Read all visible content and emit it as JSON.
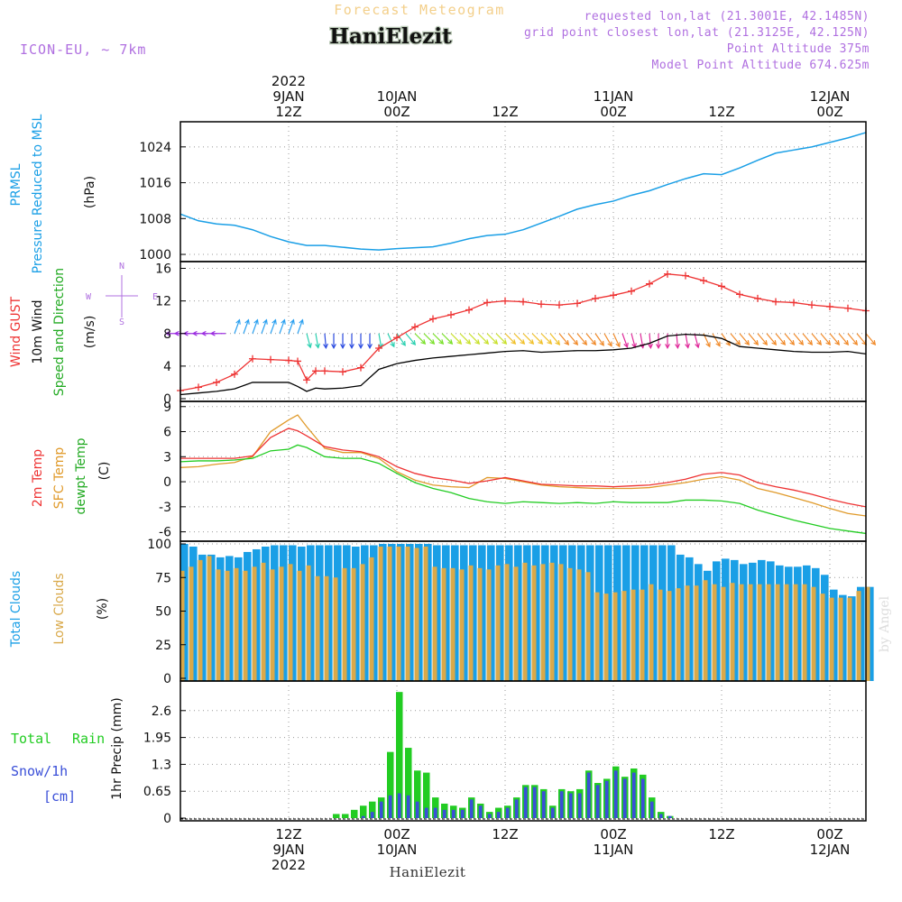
{
  "header": {
    "subtitle": "Forecast Meteogram",
    "station": "HaniElezit",
    "model": "ICON-EU, ~ 7km",
    "requested": "requested lon,lat (21.3001E, 42.1485N)",
    "closest": "grid point closest lon,lat (21.3125E, 42.125N)",
    "point_altitude": "Point Altitude 375m",
    "model_altitude": "Model Point Altitude 674.625m",
    "footer": "HaniElezit",
    "credit": "by Angel"
  },
  "time_axis": {
    "top_labels": [
      {
        "h": 12,
        "lines": [
          "2022",
          "9JAN",
          "12Z"
        ]
      },
      {
        "h": 24,
        "lines": [
          "10JAN",
          "00Z"
        ]
      },
      {
        "h": 36,
        "lines": [
          "12Z"
        ]
      },
      {
        "h": 48,
        "lines": [
          "11JAN",
          "00Z"
        ]
      },
      {
        "h": 60,
        "lines": [
          "12Z"
        ]
      },
      {
        "h": 72,
        "lines": [
          "12JAN",
          "00Z"
        ]
      }
    ],
    "bottom_labels": [
      {
        "h": 12,
        "lines": [
          "12Z",
          "9JAN",
          "2022"
        ]
      },
      {
        "h": 24,
        "lines": [
          "00Z",
          "10JAN"
        ]
      },
      {
        "h": 36,
        "lines": [
          "12Z"
        ]
      },
      {
        "h": 48,
        "lines": [
          "00Z",
          "11JAN"
        ]
      },
      {
        "h": 60,
        "lines": [
          "12Z"
        ]
      },
      {
        "h": 72,
        "lines": [
          "00Z",
          "12JAN"
        ]
      }
    ]
  },
  "colors": {
    "pressure": "#1a9fe6",
    "gust": "#ee3333",
    "wind": "#000000",
    "temp": "#ee3333",
    "sfc": "#e09a2a",
    "dew": "#22cc22",
    "total_cloud": "#1a9fe6",
    "low_cloud": "#d9a94a",
    "rain": "#22cc22",
    "snow": "#3a4fd8",
    "label_purple": "#b070e0"
  },
  "labels": {
    "pressure": [
      "PRMSL",
      "Pressure Reduced to MSL",
      "(hPa)"
    ],
    "wind": [
      "Wind GUST",
      "10m Wind",
      "Speed and Direction",
      "(m/s)"
    ],
    "compass": {
      "n": "N",
      "s": "S",
      "e": "E",
      "w": "W"
    },
    "temp": [
      "2m Temp",
      "SFC Temp",
      "dewpt Temp",
      "(C)"
    ],
    "clouds": [
      "Total Clouds",
      "Low Clouds",
      "(%)"
    ],
    "precip": [
      "Total",
      "Rain",
      "Snow/1h",
      "[cm]",
      "1hr Precip (mm)"
    ]
  },
  "chart_data": [
    {
      "type": "line",
      "panel": "pressure",
      "unit": "hPa",
      "ylim": [
        999,
        1029
      ],
      "yticks": [
        1000,
        1008,
        1016,
        1024
      ],
      "x": [
        0,
        2,
        4,
        6,
        8,
        10,
        12,
        14,
        16,
        18,
        20,
        22,
        24,
        26,
        28,
        30,
        32,
        34,
        36,
        38,
        40,
        42,
        44,
        46,
        48,
        50,
        52,
        54,
        56,
        58,
        60,
        62,
        64,
        66,
        68,
        70,
        72,
        74,
        76
      ],
      "series": [
        {
          "name": "PRMSL",
          "values": [
            1009,
            1007.5,
            1006.8,
            1006.5,
            1005.5,
            1004,
            1002.8,
            1002,
            1002,
            1001.6,
            1001.2,
            1001,
            1001.3,
            1001.5,
            1001.7,
            1002.5,
            1003.5,
            1004.2,
            1004.5,
            1005.5,
            1007,
            1008.5,
            1010.1,
            1011.1,
            1011.9,
            1013.2,
            1014.2,
            1015.6,
            1016.9,
            1018,
            1017.8,
            1019.3,
            1021,
            1022.6,
            1023.3,
            1024,
            1025,
            1026,
            1027.2
          ]
        }
      ]
    },
    {
      "type": "line",
      "panel": "wind",
      "unit": "m/s",
      "ylim": [
        0,
        16.5
      ],
      "yticks": [
        0,
        4,
        8,
        12,
        16
      ],
      "x": [
        0,
        2,
        4,
        6,
        8,
        10,
        12,
        13,
        14,
        15,
        16,
        18,
        20,
        22,
        24,
        26,
        28,
        30,
        32,
        34,
        36,
        38,
        40,
        42,
        44,
        46,
        48,
        50,
        52,
        54,
        56,
        58,
        60,
        62,
        64,
        66,
        68,
        70,
        72,
        74,
        76
      ],
      "series": [
        {
          "name": "Wind GUST",
          "values": [
            1,
            1.4,
            2,
            3,
            4.9,
            4.8,
            4.7,
            4.6,
            2.3,
            3.4,
            3.4,
            3.3,
            3.8,
            6.2,
            7.5,
            8.8,
            9.8,
            10.3,
            10.9,
            11.8,
            12,
            11.9,
            11.6,
            11.5,
            11.7,
            12.3,
            12.7,
            13.2,
            14.1,
            15.3,
            15.1,
            14.5,
            13.8,
            12.8,
            12.3,
            11.9,
            11.8,
            11.5,
            11.3,
            11.1,
            10.8
          ]
        },
        {
          "name": "10m Wind",
          "values": [
            0.5,
            0.7,
            0.9,
            1.2,
            2,
            2,
            2,
            1.5,
            0.9,
            1.3,
            1.2,
            1.3,
            1.6,
            3.6,
            4.3,
            4.7,
            5,
            5.2,
            5.4,
            5.6,
            5.8,
            5.9,
            5.7,
            5.8,
            5.9,
            5.9,
            6,
            6.2,
            6.8,
            7.7,
            7.9,
            7.8,
            7.4,
            6.4,
            6.2,
            6,
            5.8,
            5.7,
            5.7,
            5.8,
            5.5
          ]
        }
      ],
      "arrows": {
        "x": [
          0,
          1,
          2,
          3,
          4,
          5,
          6,
          7,
          8,
          9,
          10,
          11,
          12,
          13,
          14,
          15,
          16,
          17,
          18,
          19,
          20,
          21,
          22,
          23,
          24,
          25,
          26,
          27,
          28,
          29,
          30,
          31,
          32,
          33,
          34,
          35,
          36,
          37,
          38,
          39,
          40,
          41,
          42,
          43,
          44,
          45,
          46,
          47,
          48,
          49,
          50,
          51,
          52,
          53,
          54,
          55,
          56,
          57,
          58,
          59,
          60,
          61,
          62,
          63,
          64,
          65,
          66,
          67,
          68,
          69,
          70,
          71,
          72,
          73,
          74,
          75,
          76
        ],
        "to_deg": [
          270,
          270,
          270,
          270,
          270,
          270,
          20,
          20,
          20,
          20,
          20,
          20,
          20,
          20,
          165,
          170,
          175,
          180,
          180,
          180,
          180,
          180,
          170,
          155,
          145,
          140,
          135,
          135,
          135,
          135,
          135,
          135,
          135,
          135,
          135,
          135,
          135,
          135,
          135,
          135,
          135,
          140,
          140,
          140,
          140,
          140,
          145,
          150,
          155,
          160,
          165,
          170,
          175,
          180,
          180,
          175,
          170,
          165,
          155,
          150,
          145,
          140,
          140,
          140,
          140,
          140,
          140,
          140,
          140,
          140,
          140,
          140,
          140,
          140,
          140,
          140,
          140
        ]
      }
    },
    {
      "type": "line",
      "panel": "temperature",
      "unit": "C",
      "ylim": [
        -6.8,
        9.3
      ],
      "yticks": [
        -6,
        -3,
        0,
        3,
        6,
        9
      ],
      "x": [
        0,
        2,
        4,
        6,
        8,
        10,
        12,
        13,
        14,
        16,
        18,
        20,
        22,
        24,
        26,
        28,
        30,
        32,
        34,
        36,
        38,
        40,
        42,
        44,
        46,
        48,
        50,
        52,
        54,
        56,
        58,
        60,
        62,
        64,
        66,
        68,
        70,
        72,
        74,
        76
      ],
      "series": [
        {
          "name": "2m Temp",
          "values": [
            2.8,
            2.8,
            2.8,
            2.8,
            3.1,
            5.3,
            6.4,
            6.1,
            5.5,
            4.2,
            3.8,
            3.6,
            3,
            1.8,
            1,
            0.5,
            0.2,
            -0.2,
            0.1,
            0.5,
            0.1,
            -0.3,
            -0.4,
            -0.5,
            -0.5,
            -0.6,
            -0.5,
            -0.4,
            -0.1,
            0.3,
            0.9,
            1.1,
            0.8,
            -0.1,
            -0.6,
            -1,
            -1.5,
            -2.1,
            -2.6,
            -3
          ]
        },
        {
          "name": "SFC Temp",
          "values": [
            1.7,
            1.8,
            2.1,
            2.3,
            3,
            6,
            7.4,
            8,
            6.6,
            4,
            3.5,
            3.5,
            2.8,
            1.2,
            0.2,
            -0.4,
            -0.6,
            -0.7,
            0.5,
            0.4,
            0,
            -0.4,
            -0.6,
            -0.7,
            -0.8,
            -0.8,
            -0.8,
            -0.7,
            -0.4,
            -0.1,
            0.3,
            0.6,
            0.2,
            -0.8,
            -1.3,
            -1.9,
            -2.5,
            -3.2,
            -3.8,
            -4.1
          ]
        },
        {
          "name": "dewpt Temp",
          "values": [
            2.4,
            2.5,
            2.5,
            2.6,
            2.8,
            3.7,
            3.9,
            4.4,
            4.1,
            3,
            2.8,
            2.8,
            2.2,
            1,
            -0.1,
            -0.8,
            -1.3,
            -2,
            -2.4,
            -2.6,
            -2.4,
            -2.5,
            -2.6,
            -2.5,
            -2.6,
            -2.4,
            -2.5,
            -2.5,
            -2.5,
            -2.2,
            -2.2,
            -2.3,
            -2.6,
            -3.4,
            -4,
            -4.6,
            -5.1,
            -5.6,
            -5.9,
            -6.2
          ]
        }
      ]
    },
    {
      "type": "bar",
      "panel": "clouds",
      "unit": "%",
      "ylim": [
        0,
        100
      ],
      "yticks": [
        0,
        25,
        50,
        75,
        100
      ],
      "x": [
        0,
        1,
        2,
        3,
        4,
        5,
        6,
        7,
        8,
        9,
        10,
        11,
        12,
        13,
        14,
        15,
        16,
        17,
        18,
        19,
        20,
        21,
        22,
        23,
        24,
        25,
        26,
        27,
        28,
        29,
        30,
        31,
        32,
        33,
        34,
        35,
        36,
        37,
        38,
        39,
        40,
        41,
        42,
        43,
        44,
        45,
        46,
        47,
        48,
        49,
        50,
        51,
        52,
        53,
        54,
        55,
        56,
        57,
        58,
        59,
        60,
        61,
        62,
        63,
        64,
        65,
        66,
        67,
        68,
        69,
        70,
        71,
        72,
        73,
        74,
        75,
        76
      ],
      "series": [
        {
          "name": "Total Clouds",
          "values": [
            100,
            98,
            92,
            92,
            90,
            91,
            90,
            94,
            96,
            98,
            99,
            99,
            99,
            98,
            99,
            99,
            99,
            99,
            99,
            98,
            99,
            99,
            100,
            100,
            100,
            100,
            100,
            100,
            99,
            99,
            99,
            99,
            99,
            99,
            99,
            99,
            99,
            99,
            99,
            99,
            99,
            99,
            99,
            99,
            99,
            99,
            99,
            99,
            99,
            99,
            99,
            99,
            99,
            99,
            99,
            92,
            90,
            85,
            80,
            87,
            89,
            88,
            85,
            86,
            88,
            87,
            84,
            83,
            83,
            84,
            82,
            77,
            66,
            62,
            61,
            68,
            68
          ]
        },
        {
          "name": "Low Clouds",
          "values": [
            80,
            83,
            88,
            91,
            81,
            80,
            82,
            80,
            83,
            86,
            81,
            83,
            85,
            80,
            84,
            76,
            76,
            75,
            82,
            82,
            85,
            90,
            98,
            98,
            98,
            98,
            97,
            98,
            83,
            82,
            82,
            81,
            84,
            82,
            81,
            84,
            85,
            83,
            86,
            84,
            85,
            86,
            85,
            82,
            81,
            79,
            64,
            63,
            64,
            65,
            66,
            66,
            70,
            66,
            65,
            67,
            69,
            69,
            73,
            70,
            68,
            71,
            70,
            70,
            70,
            70,
            70,
            70,
            70,
            70,
            68,
            63,
            60,
            60,
            60,
            65,
            68
          ]
        }
      ]
    },
    {
      "type": "bar",
      "panel": "precipitation",
      "unit": "mm",
      "ylim": [
        0,
        3.25
      ],
      "yticks": [
        0,
        0.65,
        1.3,
        1.95,
        2.6
      ],
      "x": [
        0,
        1,
        2,
        3,
        4,
        5,
        6,
        7,
        8,
        9,
        10,
        11,
        12,
        13,
        14,
        15,
        16,
        17,
        18,
        19,
        20,
        21,
        22,
        23,
        24,
        25,
        26,
        27,
        28,
        29,
        30,
        31,
        32,
        33,
        34,
        35,
        36,
        37,
        38,
        39,
        40,
        41,
        42,
        43,
        44,
        45,
        46,
        47,
        48,
        49,
        50,
        51,
        52,
        53,
        54,
        55,
        56,
        57,
        58,
        59,
        60,
        61,
        62,
        63,
        64,
        65,
        66,
        67,
        68,
        69,
        70,
        71,
        72,
        73,
        74,
        75,
        76
      ],
      "series": [
        {
          "name": "Total Rain",
          "values": [
            0,
            0,
            0,
            0,
            0,
            0,
            0,
            0,
            0,
            0,
            0,
            0,
            0,
            0,
            0,
            0,
            0,
            0.1,
            0.1,
            0.2,
            0.3,
            0.4,
            0.5,
            1.6,
            3.05,
            1.7,
            1.15,
            1.1,
            0.5,
            0.35,
            0.3,
            0.25,
            0.5,
            0.35,
            0.15,
            0.25,
            0.3,
            0.5,
            0.8,
            0.8,
            0.7,
            0.3,
            0.7,
            0.65,
            0.7,
            1.15,
            0.85,
            0.95,
            1.25,
            1,
            1.2,
            1.05,
            0.5,
            0.15,
            0.05,
            0,
            0,
            0,
            0,
            0,
            0,
            0,
            0,
            0,
            0,
            0,
            0,
            0,
            0,
            0,
            0,
            0,
            0,
            0,
            0,
            0,
            0
          ]
        },
        {
          "name": "Snow/1h",
          "values": [
            0,
            0,
            0,
            0,
            0,
            0,
            0,
            0,
            0,
            0,
            0,
            0,
            0,
            0,
            0,
            0,
            0,
            0,
            0,
            0,
            0.05,
            0.15,
            0.4,
            0.55,
            0.6,
            0.55,
            0.4,
            0.25,
            0.25,
            0.2,
            0.2,
            0.2,
            0.45,
            0.3,
            0.1,
            0.15,
            0.25,
            0.45,
            0.75,
            0.75,
            0.65,
            0.25,
            0.65,
            0.6,
            0.6,
            1.1,
            0.8,
            0.9,
            1.15,
            0.95,
            1.1,
            0.95,
            0.4,
            0.1,
            0.05,
            0,
            0,
            0,
            0,
            0,
            0,
            0,
            0,
            0,
            0,
            0,
            0,
            0,
            0,
            0,
            0,
            0,
            0,
            0,
            0,
            0,
            0
          ]
        }
      ]
    }
  ]
}
